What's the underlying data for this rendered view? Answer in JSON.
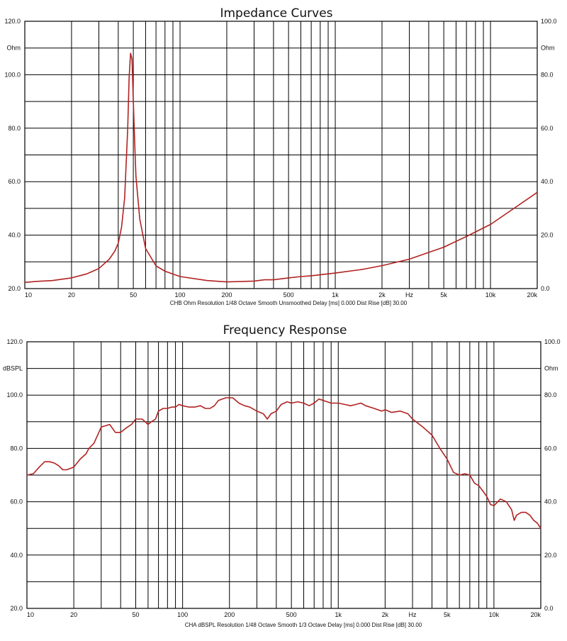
{
  "colors": {
    "curve": "#b22222",
    "grid": "#000000",
    "background": "#ffffff"
  },
  "chart_data": [
    {
      "type": "line",
      "title": "Impedance Curves",
      "caption": "CHB Ohm Resolution 1/48 Octave Smooth Unsmoothed Delay [ms] 0.000 Dist Rise [dB] 30.00",
      "x_scale": "log",
      "xlim": [
        10,
        20000
      ],
      "x_tick_labels": [
        {
          "v": 10,
          "t": "10"
        },
        {
          "v": 20,
          "t": "20"
        },
        {
          "v": 50,
          "t": "50"
        },
        {
          "v": 100,
          "t": "100"
        },
        {
          "v": 200,
          "t": "200"
        },
        {
          "v": 500,
          "t": "500"
        },
        {
          "v": 1000,
          "t": "1k"
        },
        {
          "v": 2000,
          "t": "2k"
        },
        {
          "v": 3000,
          "t": "Hz"
        },
        {
          "v": 5000,
          "t": "5k"
        },
        {
          "v": 10000,
          "t": "10k"
        },
        {
          "v": 20000,
          "t": "20k"
        }
      ],
      "left_axis": {
        "lim": [
          20,
          120
        ],
        "ticks": [
          {
            "v": 20,
            "t": "20.0"
          },
          {
            "v": 40,
            "t": "40.0"
          },
          {
            "v": 60,
            "t": "60.0"
          },
          {
            "v": 80,
            "t": "80.0"
          },
          {
            "v": 100,
            "t": "100.0"
          },
          {
            "v": 120,
            "t": "120.0"
          }
        ],
        "unit": "Ohm"
      },
      "right_axis": {
        "lim": [
          0,
          100
        ],
        "ticks": [
          {
            "v": 0,
            "t": "0.0"
          },
          {
            "v": 20,
            "t": "20.0"
          },
          {
            "v": 40,
            "t": "40.0"
          },
          {
            "v": 60,
            "t": "60.0"
          },
          {
            "v": 80,
            "t": "80.0"
          },
          {
            "v": 100,
            "t": "100.0"
          }
        ],
        "unit": "Ohm"
      },
      "grid": true,
      "series": [
        {
          "axis": "right",
          "x": [
            10,
            12,
            15,
            20,
            25,
            30,
            35,
            38,
            40,
            42,
            44,
            46,
            47,
            48,
            49,
            50,
            51,
            52,
            55,
            60,
            70,
            80,
            100,
            150,
            200,
            300,
            350,
            400,
            500,
            600,
            700,
            1000,
            1500,
            2000,
            3000,
            5000,
            7000,
            10000,
            15000,
            20000
          ],
          "y": [
            2.3,
            2.7,
            3.0,
            4.0,
            5.5,
            7.5,
            11,
            14,
            17,
            23,
            34,
            60,
            79,
            88,
            86,
            70,
            55,
            42,
            26,
            15,
            8.5,
            6.5,
            4.5,
            3.0,
            2.5,
            2.8,
            3.3,
            3.3,
            4.0,
            4.5,
            4.8,
            5.8,
            7.2,
            8.6,
            11,
            15.5,
            19.5,
            24,
            31,
            36
          ]
        }
      ]
    },
    {
      "type": "line",
      "title": "Frequency Response",
      "caption": "CHA dBSPL Resolution 1/48 Octave Smooth 1/3 Octave Delay [ms] 0.000 Dist Rise [dB] 30.00",
      "x_scale": "log",
      "xlim": [
        10,
        20000
      ],
      "x_tick_labels": [
        {
          "v": 10,
          "t": "10"
        },
        {
          "v": 20,
          "t": "20"
        },
        {
          "v": 50,
          "t": "50"
        },
        {
          "v": 100,
          "t": "100"
        },
        {
          "v": 200,
          "t": "200"
        },
        {
          "v": 500,
          "t": "500"
        },
        {
          "v": 1000,
          "t": "1k"
        },
        {
          "v": 2000,
          "t": "2k"
        },
        {
          "v": 3000,
          "t": "Hz"
        },
        {
          "v": 5000,
          "t": "5k"
        },
        {
          "v": 10000,
          "t": "10k"
        },
        {
          "v": 20000,
          "t": "20k"
        }
      ],
      "left_axis": {
        "lim": [
          20,
          120
        ],
        "ticks": [
          {
            "v": 20,
            "t": "20.0"
          },
          {
            "v": 40,
            "t": "40.0"
          },
          {
            "v": 60,
            "t": "60.0"
          },
          {
            "v": 80,
            "t": "80.0"
          },
          {
            "v": 100,
            "t": "100.0"
          },
          {
            "v": 120,
            "t": "120.0"
          }
        ],
        "unit": "dBSPL"
      },
      "right_axis": {
        "lim": [
          0,
          100
        ],
        "ticks": [
          {
            "v": 0,
            "t": "0.0"
          },
          {
            "v": 20,
            "t": "20.0"
          },
          {
            "v": 40,
            "t": "40.0"
          },
          {
            "v": 60,
            "t": "60.0"
          },
          {
            "v": 80,
            "t": "80.0"
          },
          {
            "v": 100,
            "t": "100.0"
          }
        ],
        "unit": "Ohm"
      },
      "grid": true,
      "series": [
        {
          "axis": "left",
          "x": [
            10,
            11,
            12,
            13,
            14,
            15,
            16,
            17,
            18,
            19,
            20,
            22,
            24,
            25,
            27,
            30,
            32,
            34,
            37,
            40,
            43,
            47,
            50,
            55,
            60,
            63,
            67,
            70,
            75,
            80,
            85,
            90,
            95,
            100,
            110,
            120,
            130,
            140,
            150,
            160,
            170,
            180,
            190,
            200,
            210,
            230,
            250,
            270,
            300,
            330,
            350,
            370,
            400,
            430,
            470,
            500,
            550,
            600,
            650,
            700,
            750,
            800,
            900,
            1000,
            1100,
            1200,
            1300,
            1400,
            1500,
            1700,
            1900,
            2000,
            2200,
            2500,
            2800,
            3000,
            3500,
            4000,
            4500,
            5000,
            5500,
            6000,
            6500,
            7000,
            7500,
            8000,
            8500,
            9000,
            9500,
            10000,
            11000,
            12000,
            13000,
            13500,
            14000,
            15000,
            16000,
            17000,
            18000,
            19000,
            20000
          ],
          "y": [
            70,
            70.5,
            73,
            75,
            75,
            74.5,
            73.5,
            72,
            72,
            72.5,
            73,
            76,
            78,
            80,
            82,
            88,
            88.5,
            89,
            86,
            86,
            87.5,
            89,
            91,
            91,
            89,
            90,
            91,
            94,
            95,
            95,
            95.5,
            95.5,
            96.5,
            96,
            95.5,
            95.5,
            96,
            95,
            95,
            96,
            98,
            98.5,
            99,
            99,
            99,
            97,
            96,
            95.5,
            94,
            93,
            91,
            93,
            94,
            96.5,
            97.5,
            97,
            97.5,
            97,
            96,
            97,
            98.5,
            98,
            97,
            97,
            96.5,
            96,
            96.5,
            97,
            96,
            95,
            94,
            94.5,
            93.5,
            94,
            93,
            91,
            88,
            85,
            80,
            76,
            71,
            70,
            70.5,
            70,
            67,
            66,
            64,
            62,
            59,
            58.5,
            61,
            60,
            57,
            53,
            55,
            56,
            56,
            55,
            53,
            52,
            50
          ]
        }
      ]
    }
  ]
}
